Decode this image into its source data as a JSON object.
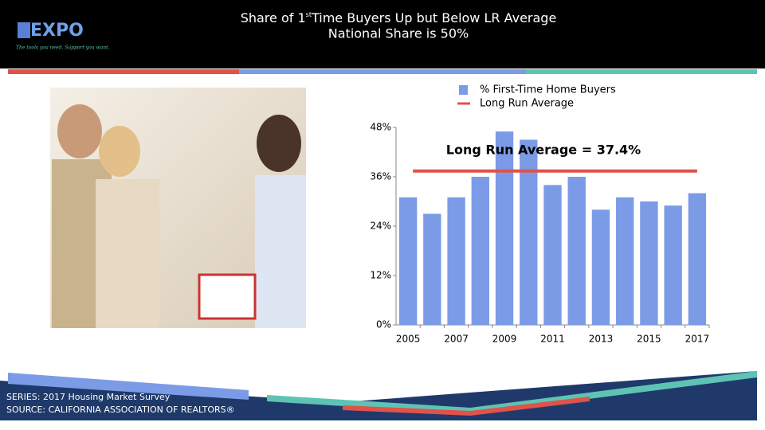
{
  "header": {
    "logo": "EXPO",
    "tagline": "The tools you need. Support you want.",
    "title_parts": [
      "Share of 1",
      "st",
      "Time Buyers Up but Below LR Average"
    ],
    "subtitle": "National Share is 50%"
  },
  "chart_data": {
    "type": "bar",
    "categories": [
      "2005",
      null,
      "2007",
      null,
      "2009",
      null,
      "2011",
      null,
      "2013",
      null,
      "2015",
      null,
      "2017"
    ],
    "series": [
      {
        "name": "% First-Time Home Buyers",
        "color": "#7b9be6",
        "values": [
          31,
          27,
          31,
          36,
          47,
          45,
          34,
          36,
          28,
          31,
          30,
          29,
          32
        ]
      }
    ],
    "reference_line": {
      "name": "Long Run Average",
      "color": "#e0524a",
      "value": 37.4
    },
    "annotation": "Long Run Average = 37.4%",
    "ylim": [
      0,
      48
    ],
    "yticks": [
      {
        "value": 0,
        "label": "0%"
      },
      {
        "value": 12,
        "label": "12%"
      },
      {
        "value": 24,
        "label": "24%"
      },
      {
        "value": 36,
        "label": "36%"
      },
      {
        "value": 48,
        "label": "48%"
      }
    ],
    "legend": "top"
  },
  "footer": {
    "series": "SERIES: 2017 Housing Market Survey",
    "source": "SOURCE:  CALIFORNIA ASSOCIATION OF REALTORS®"
  }
}
